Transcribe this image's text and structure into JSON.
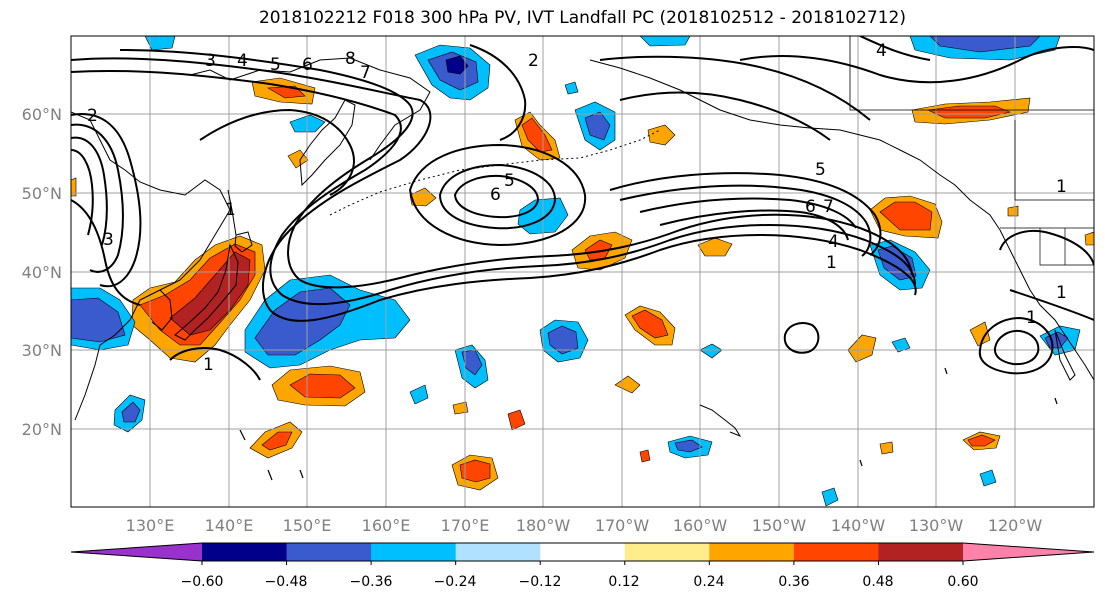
{
  "title": "2018102212 F018 300 hPa PV, IVT Landfall PC (2018102512 - 2018102712)",
  "map": {
    "lon_labels": [
      "130°E",
      "140°E",
      "150°E",
      "160°E",
      "170°E",
      "180°W",
      "170°W",
      "160°W",
      "150°W",
      "140°W",
      "130°W",
      "120°W"
    ],
    "lat_labels": [
      "60°N",
      "50°N",
      "40°N",
      "30°N",
      "20°N"
    ],
    "contour_labels": [
      "2",
      "3",
      "4",
      "5",
      "6",
      "8",
      "7",
      "2",
      "3",
      "5",
      "6",
      "5",
      "6",
      "7",
      "4",
      "1",
      "1",
      "1",
      "1",
      "1",
      "4",
      "1"
    ]
  },
  "colorbar": {
    "tick_labels": [
      "−0.60",
      "−0.48",
      "−0.36",
      "−0.24",
      "−0.12",
      "0.12",
      "0.24",
      "0.36",
      "0.48",
      "0.60"
    ],
    "colors": [
      "#9932cc",
      "#00008b",
      "#3a5bcd",
      "#00bfff",
      "#b0e2ff",
      "#ffffff",
      "#ffec8b",
      "#ffa500",
      "#ff4500",
      "#b22222",
      "#ff82ab"
    ]
  },
  "colors": {
    "neg_strong": "#00008b",
    "neg_mid": "#3a5bcd",
    "neg_light": "#00bfff",
    "neg_faint": "#b0e2ff",
    "pos_faint": "#ffec8b",
    "pos_light": "#ffa500",
    "pos_mid": "#ff4500",
    "pos_strong": "#b22222"
  }
}
